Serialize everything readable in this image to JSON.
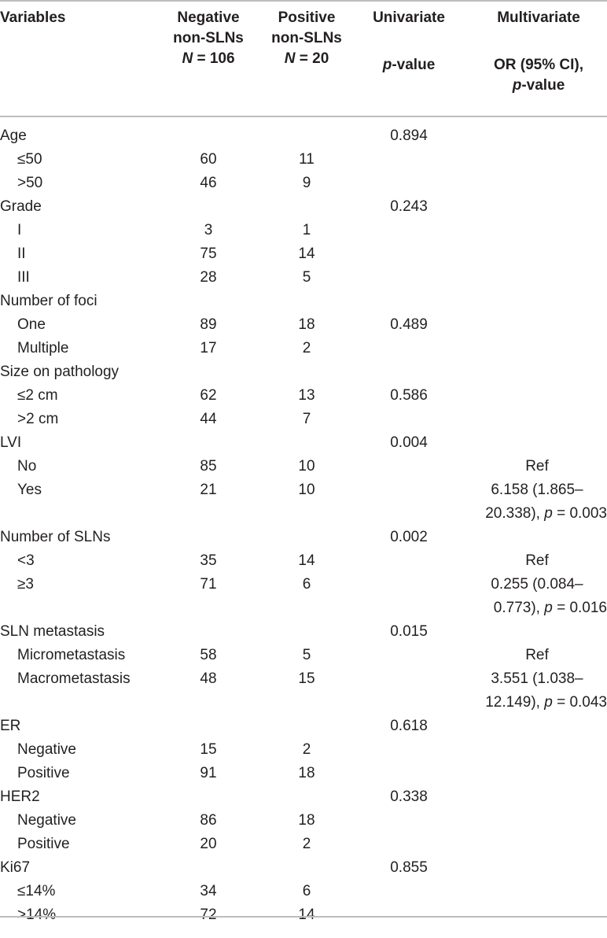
{
  "header": {
    "variables": "Variables",
    "negative": [
      "Negative",
      "non-SLNs",
      "N = 106"
    ],
    "positive": [
      "Positive",
      "non-SLNs",
      "N = 20"
    ],
    "univariate": [
      "Univariate",
      "p-value"
    ],
    "multivariate": [
      "Multivariate",
      "OR (95% CI),",
      "p-value"
    ]
  },
  "rows": [
    {
      "label": "Age",
      "neg": "",
      "pos": "",
      "uni": "0.894",
      "mul": [],
      "sub": false
    },
    {
      "label": "≤50",
      "neg": "60",
      "pos": "11",
      "uni": "",
      "mul": [],
      "sub": true
    },
    {
      "label": ">50",
      "neg": "46",
      "pos": "9",
      "uni": "",
      "mul": [],
      "sub": true
    },
    {
      "label": "Grade",
      "neg": "",
      "pos": "",
      "uni": "0.243",
      "mul": [],
      "sub": false
    },
    {
      "label": "I",
      "neg": "3",
      "pos": "1",
      "uni": "",
      "mul": [],
      "sub": true
    },
    {
      "label": "II",
      "neg": "75",
      "pos": "14",
      "uni": "",
      "mul": [],
      "sub": true
    },
    {
      "label": "III",
      "neg": "28",
      "pos": "5",
      "uni": "",
      "mul": [],
      "sub": true
    },
    {
      "label": "Number of foci",
      "neg": "",
      "pos": "",
      "uni": "",
      "mul": [],
      "sub": false
    },
    {
      "label": "One",
      "neg": "89",
      "pos": "18",
      "uni": "0.489",
      "mul": [],
      "sub": true
    },
    {
      "label": "Multiple",
      "neg": "17",
      "pos": "2",
      "uni": "",
      "mul": [],
      "sub": true
    },
    {
      "label": "Size on pathology",
      "neg": "",
      "pos": "",
      "uni": "",
      "mul": [],
      "sub": false
    },
    {
      "label": "≤2 cm",
      "neg": "62",
      "pos": "13",
      "uni": "0.586",
      "mul": [],
      "sub": true
    },
    {
      "label": ">2 cm",
      "neg": "44",
      "pos": "7",
      "uni": "",
      "mul": [],
      "sub": true
    },
    {
      "label": "LVI",
      "neg": "",
      "pos": "",
      "uni": "0.004",
      "mul": [],
      "sub": false
    },
    {
      "label": "No",
      "neg": "85",
      "pos": "10",
      "uni": "",
      "mul": [
        "Ref"
      ],
      "sub": true
    },
    {
      "label": "Yes",
      "neg": "21",
      "pos": "10",
      "uni": "",
      "mul": [
        "6.158 (1.865–",
        "20.338), p = 0.003"
      ],
      "sub": true
    },
    {
      "label": "Number of SLNs",
      "neg": "",
      "pos": "",
      "uni": "0.002",
      "mul": [],
      "sub": false
    },
    {
      "label": "<3",
      "neg": "35",
      "pos": "14",
      "uni": "",
      "mul": [
        "Ref"
      ],
      "sub": true
    },
    {
      "label": "≥3",
      "neg": "71",
      "pos": "6",
      "uni": "",
      "mul": [
        "0.255 (0.084–",
        "0.773), p = 0.016"
      ],
      "sub": true
    },
    {
      "label": "SLN metastasis",
      "neg": "",
      "pos": "",
      "uni": "0.015",
      "mul": [],
      "sub": false
    },
    {
      "label": "Micrometastasis",
      "neg": "58",
      "pos": "5",
      "uni": "",
      "mul": [
        "Ref"
      ],
      "sub": true
    },
    {
      "label": "Macrometastasis",
      "neg": "48",
      "pos": "15",
      "uni": "",
      "mul": [
        "3.551 (1.038–",
        "12.149), p = 0.043"
      ],
      "sub": true
    },
    {
      "label": "ER",
      "neg": "",
      "pos": "",
      "uni": "0.618",
      "mul": [],
      "sub": false
    },
    {
      "label": "Negative",
      "neg": "15",
      "pos": "2",
      "uni": "",
      "mul": [],
      "sub": true
    },
    {
      "label": "Positive",
      "neg": "91",
      "pos": "18",
      "uni": "",
      "mul": [],
      "sub": true
    },
    {
      "label": "HER2",
      "neg": "",
      "pos": "",
      "uni": "0.338",
      "mul": [],
      "sub": false
    },
    {
      "label": "Negative",
      "neg": "86",
      "pos": "18",
      "uni": "",
      "mul": [],
      "sub": true
    },
    {
      "label": "Positive",
      "neg": "20",
      "pos": "2",
      "uni": "",
      "mul": [],
      "sub": true
    },
    {
      "label": "Ki67",
      "neg": "",
      "pos": "",
      "uni": "0.855",
      "mul": [],
      "sub": false
    },
    {
      "label": "≤14%",
      "neg": "34",
      "pos": "6",
      "uni": "",
      "mul": [],
      "sub": true
    },
    {
      "label": ">14%",
      "neg": "72",
      "pos": "14",
      "uni": "",
      "mul": [],
      "sub": true
    }
  ]
}
